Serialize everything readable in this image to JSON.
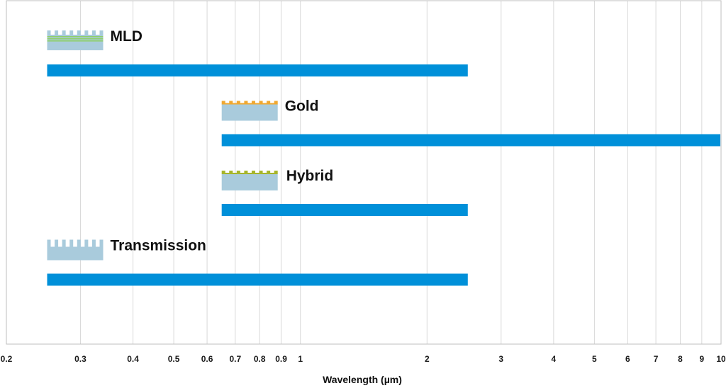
{
  "chart_data": {
    "type": "bar",
    "orientation": "horizontal",
    "x_scale": "log",
    "xlabel": "Wavelength (µm)",
    "xlim": [
      0.2,
      10
    ],
    "grid": true,
    "x_ticks": [
      {
        "value": 0.2,
        "label": "0.2"
      },
      {
        "value": 0.3,
        "label": "0.3"
      },
      {
        "value": 0.4,
        "label": "0.4"
      },
      {
        "value": 0.5,
        "label": "0.5"
      },
      {
        "value": 0.6,
        "label": "0.6"
      },
      {
        "value": 0.7,
        "label": "0.7"
      },
      {
        "value": 0.8,
        "label": "0.8"
      },
      {
        "value": 0.9,
        "label": "0.9"
      },
      {
        "value": 1,
        "label": "1"
      },
      {
        "value": 2,
        "label": "2"
      },
      {
        "value": 3,
        "label": "3"
      },
      {
        "value": 4,
        "label": "4"
      },
      {
        "value": 5,
        "label": "5"
      },
      {
        "value": 6,
        "label": "6"
      },
      {
        "value": 7,
        "label": "7"
      },
      {
        "value": 8,
        "label": "8"
      },
      {
        "value": 9,
        "label": "9"
      },
      {
        "value": 10,
        "label": "10"
      }
    ],
    "series": [
      {
        "name": "MLD",
        "start": 0.25,
        "end": 2.5,
        "icon": "mld-grating-icon"
      },
      {
        "name": "Gold",
        "start": 0.65,
        "end": 10,
        "icon": "gold-grating-icon"
      },
      {
        "name": "Hybrid",
        "start": 0.65,
        "end": 2.5,
        "icon": "hybrid-grating-icon"
      },
      {
        "name": "Transmission",
        "start": 0.25,
        "end": 2.5,
        "icon": "transmission-grating-icon"
      }
    ],
    "colors": {
      "bar": "#0090d9",
      "substrate": "#a9cbdc",
      "gold_coating": "#f0a830",
      "hybrid_coating": "#a6b52a",
      "mld_layers": "#8fcf6a"
    }
  }
}
